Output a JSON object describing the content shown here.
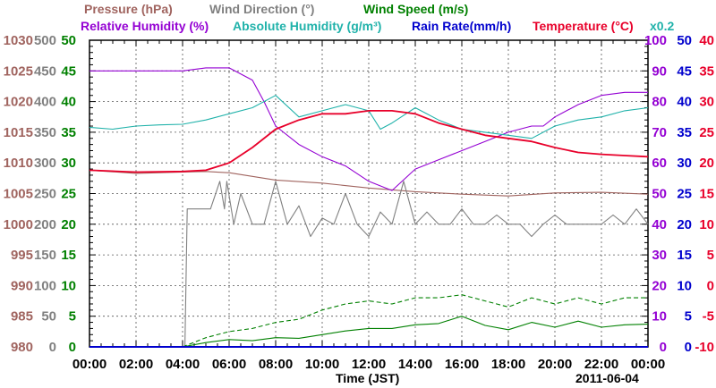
{
  "chart_data": {
    "type": "line",
    "xlabel": "Time (JST)",
    "date_label": "2011-06-04",
    "x_ticks": [
      "00:00",
      "02:00",
      "04:00",
      "06:00",
      "08:00",
      "10:00",
      "12:00",
      "14:00",
      "16:00",
      "18:00",
      "20:00",
      "22:00",
      "00:00"
    ],
    "x_range_hours": [
      0,
      24
    ],
    "grid": true,
    "legend": {
      "pressure": {
        "label": "Pressure (hPa)",
        "color": "#a0645f"
      },
      "wind_direction": {
        "label": "Wind Direction (°)",
        "color": "#808080"
      },
      "wind_speed": {
        "label": "Wind Speed (m/s)",
        "color": "#008000"
      },
      "relative_humidity": {
        "label": "Relative Humidity (%)",
        "color": "#9400d3"
      },
      "absolute_humidity": {
        "label": "Absolute Humidity (g/m³)",
        "color": "#20b2aa"
      },
      "rain_rate": {
        "label": "Rain Rate(mm/h)",
        "color": "#0000cd"
      },
      "temperature": {
        "label": "Temperature (°C)",
        "color": "#e8002a"
      },
      "multiplier": {
        "label": "x0.2",
        "color": "#20b2aa"
      }
    },
    "axes": {
      "pressure": {
        "ticks": [
          "980",
          "985",
          "990",
          "995",
          "1000",
          "1005",
          "1010",
          "1015",
          "1020",
          "1025",
          "1030"
        ],
        "range": [
          980,
          1030
        ],
        "color": "#a0645f"
      },
      "wind_direction": {
        "ticks": [
          "0",
          "50",
          "100",
          "150",
          "200",
          "250",
          "300",
          "350",
          "400",
          "450",
          "500"
        ],
        "range": [
          0,
          500
        ],
        "color": "#808080"
      },
      "wind_speed": {
        "ticks": [
          "0",
          "5",
          "10",
          "15",
          "20",
          "25",
          "30",
          "35",
          "40",
          "45",
          "50"
        ],
        "range": [
          0,
          50
        ],
        "color": "#008000"
      },
      "relative_humidity": {
        "ticks": [
          "0",
          "10",
          "20",
          "30",
          "40",
          "50",
          "60",
          "70",
          "80",
          "90",
          "100"
        ],
        "range": [
          0,
          100
        ],
        "color": "#9400d3"
      },
      "rain_rate": {
        "ticks": [
          "0",
          "5",
          "10",
          "15",
          "20",
          "25",
          "30",
          "35",
          "40",
          "45",
          "50"
        ],
        "range": [
          0,
          50
        ],
        "color": "#0000cd"
      },
      "temperature": {
        "ticks": [
          "-10",
          "-5",
          "0",
          "5",
          "10",
          "15",
          "20",
          "25",
          "30",
          "35",
          "40"
        ],
        "range": [
          -10,
          40
        ],
        "color": "#e8002a"
      }
    },
    "series": [
      {
        "key": "pressure",
        "name": "Pressure (hPa)",
        "axis": "pressure",
        "x": [
          0,
          2,
          4,
          5,
          6,
          7,
          8,
          10,
          12,
          14,
          16,
          18,
          20,
          22,
          24
        ],
        "y": [
          1008.8,
          1008.3,
          1008.5,
          1008.6,
          1008.4,
          1007.8,
          1007.2,
          1006.7,
          1005.9,
          1005.3,
          1004.9,
          1004.6,
          1005.1,
          1005.2,
          1004.9
        ]
      },
      {
        "key": "wind_direction",
        "name": "Wind Direction (°)",
        "axis": "wind_direction",
        "x": [
          4.1,
          4.2,
          5.2,
          5.6,
          5.8,
          5.9,
          6.2,
          6.5,
          7,
          7.5,
          8,
          8.5,
          9,
          9.5,
          10,
          10.5,
          11,
          11.5,
          12,
          12.5,
          13,
          13.5,
          14,
          14.5,
          15,
          15.5,
          16,
          16.5,
          17,
          17.5,
          18,
          18.5,
          19,
          19.5,
          20,
          20.5,
          21,
          21.5,
          22,
          22.5,
          23,
          23.5,
          24
        ],
        "y": [
          0,
          225,
          225,
          270,
          225,
          270,
          200,
          250,
          200,
          200,
          270,
          200,
          230,
          180,
          210,
          200,
          250,
          200,
          180,
          220,
          200,
          270,
          200,
          220,
          200,
          200,
          225,
          200,
          200,
          215,
          200,
          200,
          180,
          200,
          215,
          200,
          200,
          200,
          200,
          215,
          200,
          225,
          200
        ]
      },
      {
        "key": "wind_speed",
        "name": "Wind Speed (m/s)",
        "axis": "wind_speed",
        "x": [
          0,
          4,
          5,
          6,
          7,
          8,
          9,
          10,
          11,
          12,
          13,
          14,
          15,
          16,
          17,
          18,
          19,
          20,
          21,
          22,
          23,
          24
        ],
        "y": [
          0,
          0,
          0.7,
          1.2,
          1.0,
          1.5,
          1.4,
          2.0,
          2.6,
          3.0,
          3.0,
          3.6,
          3.8,
          5.0,
          3.5,
          2.8,
          4.0,
          3.2,
          4.2,
          3.2,
          3.6,
          3.7
        ]
      },
      {
        "key": "wind_speed_gust",
        "name": "Wind Speed (m/s)",
        "axis": "wind_speed",
        "dashed": true,
        "x": [
          0,
          4,
          5,
          6,
          7,
          8,
          9,
          10,
          11,
          12,
          13,
          14,
          15,
          16,
          17,
          18,
          19,
          20,
          21,
          22,
          23,
          24
        ],
        "y": [
          0,
          0,
          1.5,
          2.5,
          3.0,
          4.0,
          4.5,
          6.0,
          7.0,
          7.5,
          7.0,
          8.0,
          8.0,
          8.5,
          7.5,
          6.5,
          8.0,
          7.0,
          8.0,
          7.0,
          8.0,
          8.0
        ]
      },
      {
        "key": "relative_humidity",
        "name": "Relative Humidity (%)",
        "axis": "relative_humidity",
        "x": [
          0,
          2,
          4,
          5,
          6,
          7,
          7.5,
          8,
          9,
          10,
          11,
          12,
          13,
          14,
          15,
          16,
          17,
          18,
          19,
          19.5,
          20,
          21,
          22,
          23,
          24
        ],
        "y": [
          90,
          90,
          90,
          91,
          91,
          87,
          80,
          72,
          66,
          62,
          59,
          54,
          51,
          58,
          61,
          64,
          67,
          70,
          72,
          72,
          75,
          79,
          82,
          83,
          83
        ]
      },
      {
        "key": "absolute_humidity",
        "name": "Absolute Humidity (g/m³)",
        "axis": "wind_speed",
        "x": [
          0,
          1,
          2,
          3,
          4,
          5,
          6,
          7,
          8,
          9,
          10,
          11,
          12,
          12.5,
          13,
          14,
          15,
          16,
          17,
          18,
          19,
          20,
          21,
          22,
          23,
          24
        ],
        "y": [
          35.8,
          35.5,
          36.0,
          36.2,
          36.3,
          37.0,
          38.0,
          39.0,
          41.0,
          37.5,
          38.5,
          39.5,
          38.5,
          35.5,
          36.5,
          39.0,
          37.0,
          35.5,
          35.0,
          34.5,
          34.0,
          36.0,
          37.0,
          37.5,
          38.5,
          39.0
        ]
      },
      {
        "key": "rain_rate",
        "name": "Rain Rate(mm/h)",
        "axis": "rain_rate",
        "x": [
          0,
          24
        ],
        "y": [
          0,
          0
        ]
      },
      {
        "key": "temperature",
        "name": "Temperature (°C)",
        "axis": "temperature",
        "x": [
          0,
          2,
          4,
          5,
          6,
          7,
          8,
          9,
          10,
          11,
          12,
          13,
          14,
          15,
          16,
          17,
          18,
          19,
          20,
          21,
          22,
          23,
          24
        ],
        "y": [
          18.8,
          18.5,
          18.6,
          18.8,
          20.0,
          22.5,
          25.5,
          27.0,
          28.0,
          28.0,
          28.5,
          28.5,
          28.0,
          26.5,
          25.5,
          24.5,
          24.0,
          23.5,
          22.5,
          21.7,
          21.4,
          21.2,
          21.0
        ]
      }
    ]
  }
}
